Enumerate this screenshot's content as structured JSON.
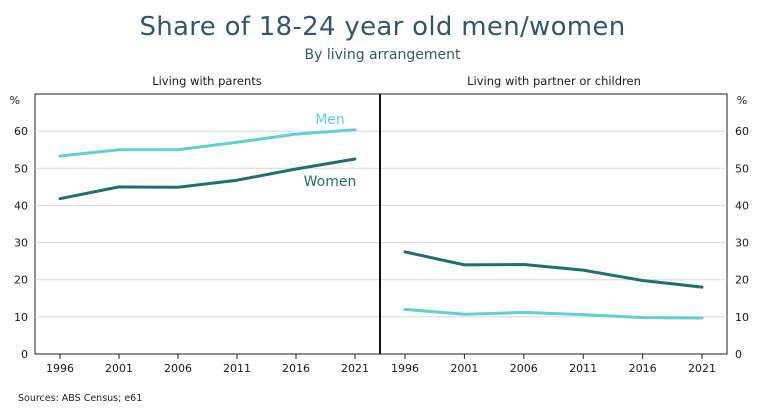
{
  "title": "Share of 18-24 year old men/women",
  "subtitle": "By living arrangement",
  "source": "Sources: ABS Census; e61",
  "colors": {
    "men": "#62cfd2",
    "women": "#1e7070"
  },
  "chart_data": [
    {
      "type": "line",
      "panel_title": "Living with parents",
      "ylabel": "%",
      "ylim": [
        0,
        70
      ],
      "yticks": [
        0,
        10,
        20,
        30,
        40,
        50,
        60
      ],
      "x": [
        "1996",
        "2001",
        "2006",
        "2011",
        "2016",
        "2021"
      ],
      "grid": true,
      "series": [
        {
          "name": "Men",
          "values": [
            53.3,
            55.0,
            55.0,
            57.0,
            59.2,
            60.4
          ]
        },
        {
          "name": "Women",
          "values": [
            41.8,
            45.0,
            44.9,
            46.8,
            49.8,
            52.5
          ]
        }
      ]
    },
    {
      "type": "line",
      "panel_title": "Living with partner or children",
      "ylabel": "%",
      "ylim": [
        0,
        70
      ],
      "yticks": [
        0,
        10,
        20,
        30,
        40,
        50,
        60
      ],
      "x": [
        "1996",
        "2001",
        "2006",
        "2011",
        "2016",
        "2021"
      ],
      "grid": true,
      "series": [
        {
          "name": "",
          "values": [
            27.5,
            24.0,
            24.1,
            22.6,
            19.8,
            18.0
          ]
        },
        {
          "name": "",
          "values": [
            12.0,
            10.7,
            11.2,
            10.6,
            9.8,
            9.7
          ]
        }
      ]
    }
  ]
}
